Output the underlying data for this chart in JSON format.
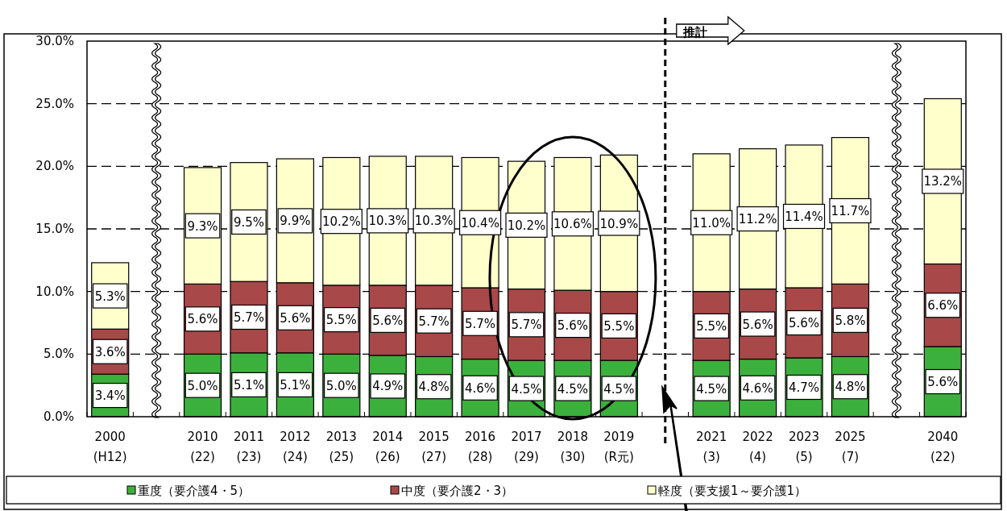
{
  "chart_data": {
    "type": "bar",
    "stacked": true,
    "categories": [
      "2000\n(H12)",
      null,
      "2010\n(22)",
      "2011\n(23)",
      "2012\n(24)",
      "2013\n(25)",
      "2014\n(26)",
      "2015\n(27)",
      "2016\n(28)",
      "2017\n(29)",
      "2018\n(30)",
      "2019\n(R元)",
      null,
      "2021\n(3)",
      "2022\n(4)",
      "2023\n(5)",
      "2025\n(7)",
      null,
      "2040\n(22)"
    ],
    "series": [
      {
        "name": "重度（要介護4・5）",
        "color": "#3cb03c",
        "values": [
          3.4,
          null,
          5.0,
          5.1,
          5.1,
          5.0,
          4.9,
          4.8,
          4.6,
          4.5,
          4.5,
          4.5,
          null,
          4.5,
          4.6,
          4.7,
          4.8,
          null,
          5.6
        ],
        "value_labels": [
          "3.4%",
          null,
          "5.0%",
          "5.1%",
          "5.1%",
          "5.0%",
          "4.9%",
          "4.8%",
          "4.6%",
          "4.5%",
          "4.5%",
          "4.5%",
          null,
          "4.5%",
          "4.6%",
          "4.7%",
          "4.8%",
          null,
          "5.6%"
        ]
      },
      {
        "name": "中度（要介護2・3）",
        "color": "#a84848",
        "values": [
          3.6,
          null,
          5.6,
          5.7,
          5.6,
          5.5,
          5.6,
          5.7,
          5.7,
          5.7,
          5.6,
          5.5,
          null,
          5.5,
          5.6,
          5.6,
          5.8,
          null,
          6.6
        ],
        "value_labels": [
          "3.6%",
          null,
          "5.6%",
          "5.7%",
          "5.6%",
          "5.5%",
          "5.6%",
          "5.7%",
          "5.7%",
          "5.7%",
          "5.6%",
          "5.5%",
          null,
          "5.5%",
          "5.6%",
          "5.6%",
          "5.8%",
          null,
          "6.6%"
        ]
      },
      {
        "name": "軽度（要支援1～要介護1）",
        "color": "#ffffcc",
        "values": [
          5.3,
          null,
          9.3,
          9.5,
          9.9,
          10.2,
          10.3,
          10.3,
          10.4,
          10.2,
          10.6,
          10.9,
          null,
          11.0,
          11.2,
          11.4,
          11.7,
          null,
          13.2
        ],
        "value_labels": [
          "5.3%",
          null,
          "9.3%",
          "9.5%",
          "9.9%",
          "10.2%",
          "10.3%",
          "10.3%",
          "10.4%",
          "10.2%",
          "10.6%",
          "10.9%",
          null,
          "11.0%",
          "11.2%",
          "11.4%",
          "11.7%",
          null,
          "13.2%"
        ]
      }
    ],
    "ylim": [
      0,
      30
    ],
    "yticks": [
      {
        "value": 0,
        "label": "0.0%"
      },
      {
        "value": 5,
        "label": "5.0%"
      },
      {
        "value": 10,
        "label": "10.0%"
      },
      {
        "value": 15,
        "label": "15.0%"
      },
      {
        "value": 20,
        "label": "20.0%"
      },
      {
        "value": 25,
        "label": "25.0%"
      },
      {
        "value": 30,
        "label": "30.0%"
      }
    ],
    "grid": "y",
    "legend": "bottom",
    "annotations": [
      "推計"
    ]
  }
}
